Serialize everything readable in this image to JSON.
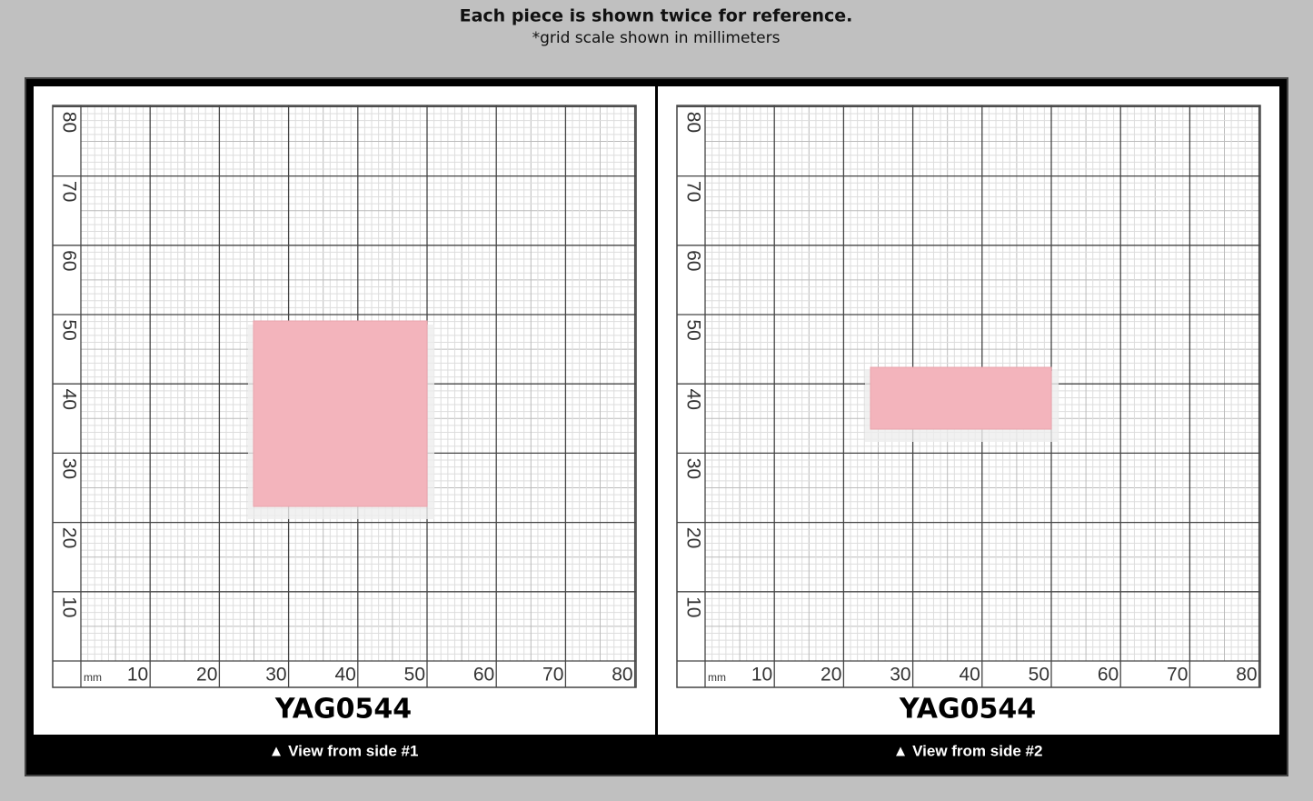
{
  "header": {
    "title": "Each piece is shown twice for reference.",
    "subtitle": "*grid scale shown in millimeters"
  },
  "grid": {
    "unit": "mm",
    "ticks": [
      10,
      20,
      30,
      40,
      50,
      60,
      70,
      80
    ]
  },
  "panels": [
    {
      "label": "YAG0544",
      "caption": "▲ View from side #1"
    },
    {
      "label": "YAG0544",
      "caption": "▲ View from side #2"
    }
  ]
}
